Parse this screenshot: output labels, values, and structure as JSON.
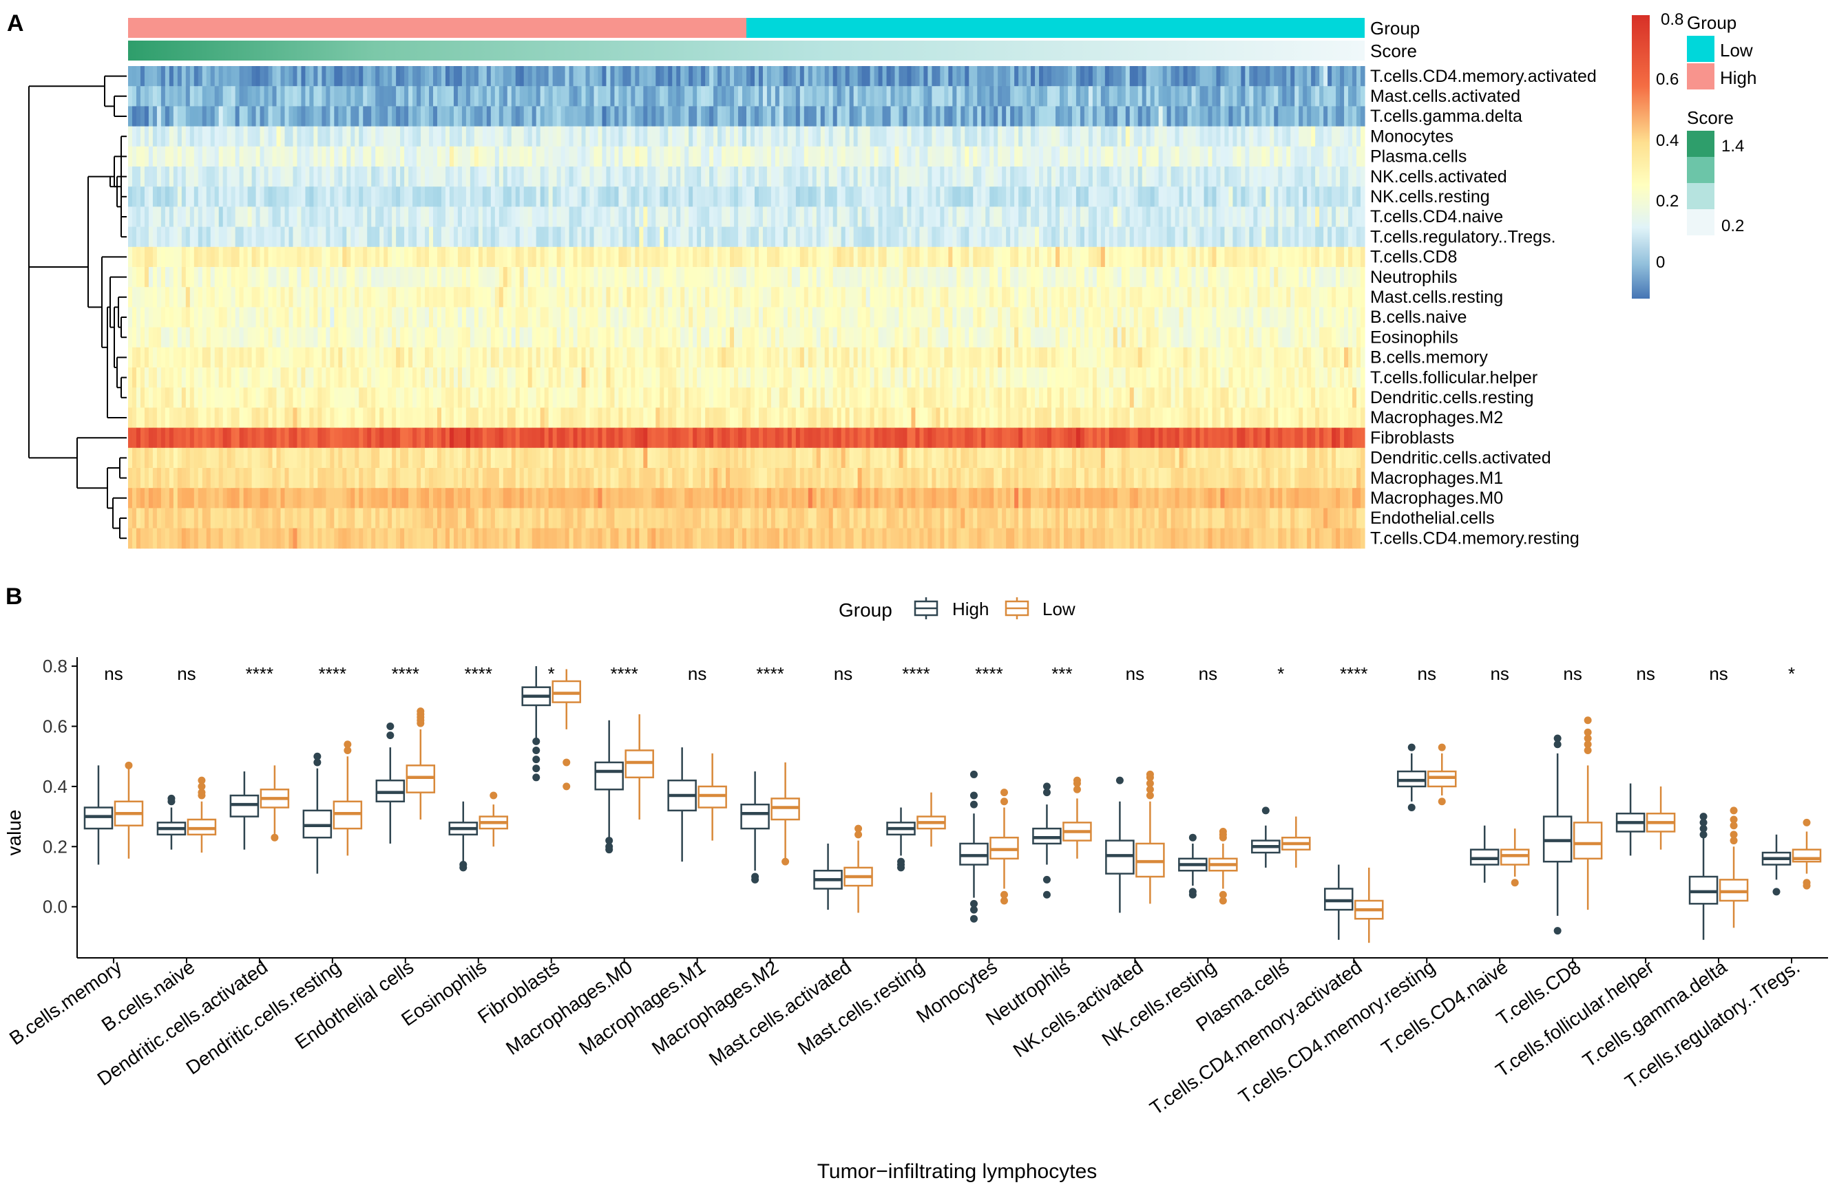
{
  "panels": {
    "a": "A",
    "b": "B"
  },
  "heatmap": {
    "annotation_labels": [
      "Group",
      "Score"
    ],
    "rows": [
      "T.cells.CD4.memory.activated",
      "Mast.cells.activated",
      "T.cells.gamma.delta",
      "Monocytes",
      "Plasma.cells",
      "NK.cells.activated",
      "NK.cells.resting",
      "T.cells.CD4.naive",
      "T.cells.regulatory..Tregs.",
      "T.cells.CD8",
      "Neutrophils",
      "Mast.cells.resting",
      "B.cells.naive",
      "Eosinophils",
      "B.cells.memory",
      "T.cells.follicular.helper",
      "Dendritic.cells.resting",
      "Macrophages.M2",
      "Fibroblasts",
      "Dendritic.cells.activated",
      "Macrophages.M1",
      "Macrophages.M0",
      "Endothelial.cells",
      "T.cells.CD4.memory.resting"
    ],
    "row_mean_values": [
      0.01,
      0.06,
      0.04,
      0.18,
      0.21,
      0.17,
      0.14,
      0.17,
      0.16,
      0.31,
      0.25,
      0.28,
      0.26,
      0.26,
      0.3,
      0.28,
      0.3,
      0.32,
      0.7,
      0.36,
      0.37,
      0.47,
      0.4,
      0.43
    ],
    "n_samples": 300,
    "legend": {
      "value_ticks": [
        "0.8",
        "0.6",
        "0.4",
        "0.2",
        "0"
      ],
      "group_title": "Group",
      "group_items": [
        {
          "label": "Low",
          "color": "#00D7DA"
        },
        {
          "label": "High",
          "color": "#F8948D"
        }
      ],
      "score_title": "Score",
      "score_ticks": [
        "1.4",
        "0.2"
      ]
    }
  },
  "chart_data": {
    "type": "boxplot",
    "title": "",
    "xlabel": "Tumor−infiltrating lymphocytes",
    "ylabel": "value",
    "ylim": [
      -0.17,
      0.83
    ],
    "yticks": [
      "0.8",
      "0.6",
      "0.4",
      "0.2",
      "0.0"
    ],
    "ytick_values": [
      0.8,
      0.6,
      0.4,
      0.2,
      0.0
    ],
    "legend_title": "Group",
    "series_colors": {
      "High": "#2F4550",
      "Low": "#D9893A"
    },
    "categories": [
      "B.cells.memory",
      "B.cells.naive",
      "Dendritic.cells.activated",
      "Dendritic.cells.resting",
      "Endothelial cells",
      "Eosinophils",
      "Fibroblasts",
      "Macrophages.M0",
      "Macrophages.M1",
      "Macrophages.M2",
      "Mast.cells.activated",
      "Mast.cells.resting",
      "Monocytes",
      "Neutrophils",
      "NK.cells.activated",
      "NK.cells.resting",
      "Plasma.cells",
      "T.cells.CD4.memory.activated",
      "T.cells.CD4.memory.resting",
      "T.cells.CD4.naive",
      "T.cells.CD8",
      "T.cells.follicular.helper",
      "T.cells.gamma.delta",
      "T.cells.regulatory..Tregs."
    ],
    "significance": [
      "ns",
      "ns",
      "****",
      "****",
      "****",
      "****",
      "*",
      "****",
      "ns",
      "****",
      "ns",
      "****",
      "****",
      "***",
      "ns",
      "ns",
      "*",
      "****",
      "ns",
      "ns",
      "ns",
      "ns",
      "ns",
      "*"
    ],
    "series": [
      {
        "name": "High",
        "boxes": [
          {
            "min": 0.14,
            "q1": 0.26,
            "median": 0.3,
            "q3": 0.33,
            "max": 0.47,
            "outliers": []
          },
          {
            "min": 0.19,
            "q1": 0.24,
            "median": 0.26,
            "q3": 0.28,
            "max": 0.33,
            "outliers": [
              0.35,
              0.36
            ]
          },
          {
            "min": 0.19,
            "q1": 0.3,
            "median": 0.34,
            "q3": 0.37,
            "max": 0.45,
            "outliers": []
          },
          {
            "min": 0.11,
            "q1": 0.23,
            "median": 0.27,
            "q3": 0.32,
            "max": 0.46,
            "outliers": [
              0.48,
              0.5
            ]
          },
          {
            "min": 0.21,
            "q1": 0.35,
            "median": 0.38,
            "q3": 0.42,
            "max": 0.53,
            "outliers": [
              0.57,
              0.6
            ]
          },
          {
            "min": 0.15,
            "q1": 0.24,
            "median": 0.26,
            "q3": 0.28,
            "max": 0.35,
            "outliers": [
              0.13,
              0.14
            ]
          },
          {
            "min": 0.56,
            "q1": 0.67,
            "median": 0.7,
            "q3": 0.73,
            "max": 0.8,
            "outliers": [
              0.43,
              0.46,
              0.49,
              0.52,
              0.55
            ]
          },
          {
            "min": 0.23,
            "q1": 0.39,
            "median": 0.45,
            "q3": 0.48,
            "max": 0.62,
            "outliers": [
              0.19,
              0.2,
              0.22
            ]
          },
          {
            "min": 0.15,
            "q1": 0.32,
            "median": 0.37,
            "q3": 0.42,
            "max": 0.53,
            "outliers": []
          },
          {
            "min": 0.12,
            "q1": 0.26,
            "median": 0.31,
            "q3": 0.34,
            "max": 0.45,
            "outliers": [
              0.09,
              0.1
            ]
          },
          {
            "min": -0.01,
            "q1": 0.06,
            "median": 0.09,
            "q3": 0.12,
            "max": 0.21,
            "outliers": []
          },
          {
            "min": 0.17,
            "q1": 0.24,
            "median": 0.26,
            "q3": 0.28,
            "max": 0.33,
            "outliers": [
              0.13,
              0.14,
              0.15
            ]
          },
          {
            "min": 0.03,
            "q1": 0.14,
            "median": 0.17,
            "q3": 0.21,
            "max": 0.31,
            "outliers": [
              -0.04,
              -0.01,
              0.01,
              0.34,
              0.37,
              0.44
            ]
          },
          {
            "min": 0.14,
            "q1": 0.21,
            "median": 0.23,
            "q3": 0.26,
            "max": 0.34,
            "outliers": [
              0.04,
              0.09,
              0.38,
              0.4
            ]
          },
          {
            "min": -0.02,
            "q1": 0.11,
            "median": 0.17,
            "q3": 0.22,
            "max": 0.35,
            "outliers": [
              0.42
            ]
          },
          {
            "min": 0.07,
            "q1": 0.12,
            "median": 0.14,
            "q3": 0.16,
            "max": 0.21,
            "outliers": [
              0.04,
              0.05,
              0.23
            ]
          },
          {
            "min": 0.13,
            "q1": 0.18,
            "median": 0.2,
            "q3": 0.22,
            "max": 0.27,
            "outliers": [
              0.32
            ]
          },
          {
            "min": -0.11,
            "q1": -0.01,
            "median": 0.02,
            "q3": 0.06,
            "max": 0.14,
            "outliers": []
          },
          {
            "min": 0.35,
            "q1": 0.4,
            "median": 0.42,
            "q3": 0.45,
            "max": 0.51,
            "outliers": [
              0.33,
              0.53
            ]
          },
          {
            "min": 0.08,
            "q1": 0.14,
            "median": 0.16,
            "q3": 0.19,
            "max": 0.27,
            "outliers": []
          },
          {
            "min": -0.03,
            "q1": 0.15,
            "median": 0.22,
            "q3": 0.3,
            "max": 0.51,
            "outliers": [
              -0.08,
              0.54,
              0.56
            ]
          },
          {
            "min": 0.17,
            "q1": 0.25,
            "median": 0.28,
            "q3": 0.31,
            "max": 0.41,
            "outliers": []
          },
          {
            "min": -0.11,
            "q1": 0.01,
            "median": 0.05,
            "q3": 0.1,
            "max": 0.23,
            "outliers": [
              0.24,
              0.26,
              0.28,
              0.3
            ]
          },
          {
            "min": 0.09,
            "q1": 0.14,
            "median": 0.16,
            "q3": 0.18,
            "max": 0.24,
            "outliers": [
              0.05
            ]
          }
        ]
      },
      {
        "name": "Low",
        "boxes": [
          {
            "min": 0.16,
            "q1": 0.27,
            "median": 0.31,
            "q3": 0.35,
            "max": 0.46,
            "outliers": [
              0.47
            ]
          },
          {
            "min": 0.18,
            "q1": 0.24,
            "median": 0.26,
            "q3": 0.29,
            "max": 0.35,
            "outliers": [
              0.37,
              0.38,
              0.4,
              0.42
            ]
          },
          {
            "min": 0.24,
            "q1": 0.33,
            "median": 0.36,
            "q3": 0.39,
            "max": 0.47,
            "outliers": [
              0.23
            ]
          },
          {
            "min": 0.17,
            "q1": 0.26,
            "median": 0.31,
            "q3": 0.35,
            "max": 0.5,
            "outliers": [
              0.52,
              0.54
            ]
          },
          {
            "min": 0.29,
            "q1": 0.38,
            "median": 0.43,
            "q3": 0.47,
            "max": 0.59,
            "outliers": [
              0.61,
              0.62,
              0.63,
              0.64,
              0.65
            ]
          },
          {
            "min": 0.2,
            "q1": 0.26,
            "median": 0.28,
            "q3": 0.3,
            "max": 0.34,
            "outliers": [
              0.37
            ]
          },
          {
            "min": 0.59,
            "q1": 0.68,
            "median": 0.71,
            "q3": 0.75,
            "max": 0.79,
            "outliers": [
              0.4,
              0.48
            ]
          },
          {
            "min": 0.29,
            "q1": 0.43,
            "median": 0.48,
            "q3": 0.52,
            "max": 0.64,
            "outliers": []
          },
          {
            "min": 0.22,
            "q1": 0.33,
            "median": 0.37,
            "q3": 0.4,
            "max": 0.51,
            "outliers": []
          },
          {
            "min": 0.16,
            "q1": 0.29,
            "median": 0.33,
            "q3": 0.36,
            "max": 0.48,
            "outliers": [
              0.15
            ]
          },
          {
            "min": -0.02,
            "q1": 0.07,
            "median": 0.1,
            "q3": 0.13,
            "max": 0.22,
            "outliers": [
              0.24,
              0.26
            ]
          },
          {
            "min": 0.2,
            "q1": 0.26,
            "median": 0.28,
            "q3": 0.3,
            "max": 0.38,
            "outliers": []
          },
          {
            "min": 0.06,
            "q1": 0.16,
            "median": 0.19,
            "q3": 0.23,
            "max": 0.33,
            "outliers": [
              0.02,
              0.04,
              0.35,
              0.38
            ]
          },
          {
            "min": 0.16,
            "q1": 0.22,
            "median": 0.25,
            "q3": 0.28,
            "max": 0.36,
            "outliers": [
              0.39,
              0.41,
              0.42
            ]
          },
          {
            "min": 0.01,
            "q1": 0.1,
            "median": 0.15,
            "q3": 0.21,
            "max": 0.35,
            "outliers": [
              0.37,
              0.39,
              0.41,
              0.43,
              0.44
            ]
          },
          {
            "min": 0.06,
            "q1": 0.12,
            "median": 0.14,
            "q3": 0.16,
            "max": 0.21,
            "outliers": [
              0.02,
              0.04,
              0.23,
              0.24,
              0.25
            ]
          },
          {
            "min": 0.13,
            "q1": 0.19,
            "median": 0.21,
            "q3": 0.23,
            "max": 0.3,
            "outliers": []
          },
          {
            "min": -0.12,
            "q1": -0.04,
            "median": -0.01,
            "q3": 0.02,
            "max": 0.13,
            "outliers": []
          },
          {
            "min": 0.37,
            "q1": 0.4,
            "median": 0.43,
            "q3": 0.45,
            "max": 0.51,
            "outliers": [
              0.35,
              0.53
            ]
          },
          {
            "min": 0.1,
            "q1": 0.14,
            "median": 0.17,
            "q3": 0.19,
            "max": 0.26,
            "outliers": [
              0.08
            ]
          },
          {
            "min": -0.01,
            "q1": 0.16,
            "median": 0.21,
            "q3": 0.28,
            "max": 0.47,
            "outliers": [
              0.52,
              0.54,
              0.56,
              0.58,
              0.62
            ]
          },
          {
            "min": 0.19,
            "q1": 0.25,
            "median": 0.28,
            "q3": 0.31,
            "max": 0.4,
            "outliers": []
          },
          {
            "min": -0.07,
            "q1": 0.02,
            "median": 0.05,
            "q3": 0.09,
            "max": 0.2,
            "outliers": [
              0.22,
              0.24,
              0.27,
              0.29,
              0.32
            ]
          },
          {
            "min": 0.11,
            "q1": 0.15,
            "median": 0.16,
            "q3": 0.19,
            "max": 0.25,
            "outliers": [
              0.07,
              0.08,
              0.28
            ]
          }
        ]
      }
    ]
  }
}
